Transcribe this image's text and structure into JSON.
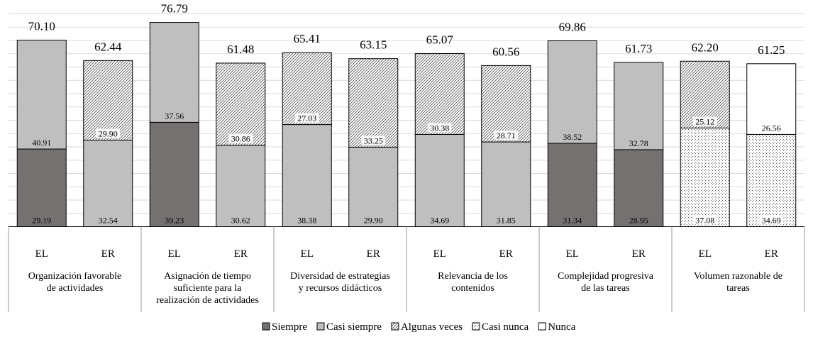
{
  "chart_data": {
    "type": "bar",
    "stacked": true,
    "ylim": [
      0,
      80
    ],
    "grid": true,
    "legend_position": "bottom",
    "groups": [
      {
        "label": "Organización favorable de actividades",
        "label_lines": [
          "Organización favorable",
          "de actividades"
        ]
      },
      {
        "label": "Asignación de tiempo suficiente para la realización de actividades",
        "label_lines": [
          "Asignación de tiempo",
          "suficiente para la",
          "realización de actividades"
        ]
      },
      {
        "label": "Diversidad de estrategias y recursos didácticos",
        "label_lines": [
          "Diversidad de estrategias",
          "y recursos didácticos"
        ]
      },
      {
        "label": "Relevancia de los contenidos",
        "label_lines": [
          "Relevancia de los",
          "contenidos"
        ]
      },
      {
        "label": "Complejidad progresiva de las tareas",
        "label_lines": [
          "Complejidad progresiva",
          "de las tareas"
        ]
      },
      {
        "label": "Volumen razonable de tareas",
        "label_lines": [
          "Volumen razonable de",
          "tareas"
        ]
      }
    ],
    "bars": [
      {
        "group": 0,
        "sub": "EL",
        "total": "70.10",
        "segments": [
          {
            "series": 0,
            "value": 29.19,
            "label": "29.19"
          },
          {
            "series": 1,
            "value": 40.91,
            "label": "40.91"
          }
        ]
      },
      {
        "group": 0,
        "sub": "ER",
        "total": "62.44",
        "segments": [
          {
            "series": 1,
            "value": 32.54,
            "label": "32.54"
          },
          {
            "series": 2,
            "value": 29.9,
            "label": "29.90"
          }
        ]
      },
      {
        "group": 1,
        "sub": "EL",
        "total": "76.79",
        "segments": [
          {
            "series": 0,
            "value": 39.23,
            "label": "39.23"
          },
          {
            "series": 1,
            "value": 37.56,
            "label": "37.56"
          }
        ]
      },
      {
        "group": 1,
        "sub": "ER",
        "total": "61.48",
        "segments": [
          {
            "series": 1,
            "value": 30.62,
            "label": "30.62"
          },
          {
            "series": 2,
            "value": 30.86,
            "label": "30.86"
          }
        ]
      },
      {
        "group": 2,
        "sub": "EL",
        "total": "65.41",
        "segments": [
          {
            "series": 1,
            "value": 38.38,
            "label": "38.38"
          },
          {
            "series": 2,
            "value": 27.03,
            "label": "27.03"
          }
        ]
      },
      {
        "group": 2,
        "sub": "ER",
        "total": "63.15",
        "segments": [
          {
            "series": 1,
            "value": 29.9,
            "label": "29.90"
          },
          {
            "series": 2,
            "value": 33.25,
            "label": "33.25"
          }
        ]
      },
      {
        "group": 3,
        "sub": "EL",
        "total": "65.07",
        "segments": [
          {
            "series": 1,
            "value": 34.69,
            "label": "34.69"
          },
          {
            "series": 2,
            "value": 30.38,
            "label": "30.38"
          }
        ]
      },
      {
        "group": 3,
        "sub": "ER",
        "total": "60.56",
        "segments": [
          {
            "series": 1,
            "value": 31.85,
            "label": "31.85"
          },
          {
            "series": 2,
            "value": 28.71,
            "label": "28.71"
          }
        ]
      },
      {
        "group": 4,
        "sub": "EL",
        "total": "69.86",
        "segments": [
          {
            "series": 0,
            "value": 31.34,
            "label": "31.34"
          },
          {
            "series": 1,
            "value": 38.52,
            "label": "38.52"
          }
        ]
      },
      {
        "group": 4,
        "sub": "ER",
        "total": "61.73",
        "segments": [
          {
            "series": 0,
            "value": 28.95,
            "label": "28.95"
          },
          {
            "series": 1,
            "value": 32.78,
            "label": "32.78"
          }
        ]
      },
      {
        "group": 5,
        "sub": "EL",
        "total": "62.20",
        "segments": [
          {
            "series": 3,
            "value": 37.08,
            "label": "37.08"
          },
          {
            "series": 2,
            "value": 25.12,
            "label": "25.12"
          }
        ]
      },
      {
        "group": 5,
        "sub": "ER",
        "total": "61.25",
        "segments": [
          {
            "series": 3,
            "value": 34.69,
            "label": "34.69"
          },
          {
            "series": 4,
            "value": 26.56,
            "label": "26.56"
          }
        ]
      }
    ],
    "series": [
      {
        "name": "Siempre",
        "color": "#767171",
        "pattern": "solid"
      },
      {
        "name": "Casi siempre",
        "color": "#bfbfbf",
        "pattern": "solid"
      },
      {
        "name": "Algunas veces",
        "color": "#ffffff",
        "pattern": "diagonal-hatch"
      },
      {
        "name": "Casi nunca",
        "color": "#ffffff",
        "pattern": "dots"
      },
      {
        "name": "Nunca",
        "color": "#ffffff",
        "pattern": "solid"
      }
    ]
  }
}
